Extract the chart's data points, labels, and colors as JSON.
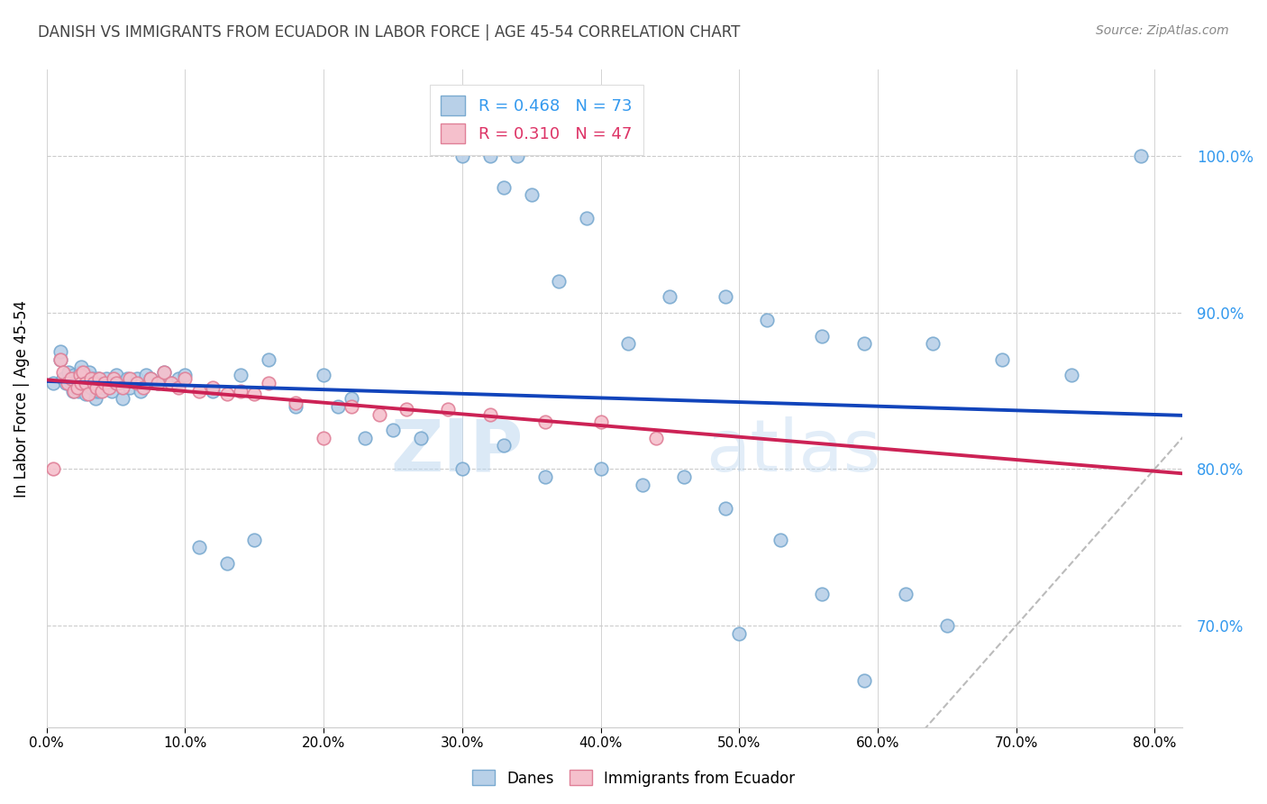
{
  "title": "DANISH VS IMMIGRANTS FROM ECUADOR IN LABOR FORCE | AGE 45-54 CORRELATION CHART",
  "source": "Source: ZipAtlas.com",
  "xlabel_vals": [
    0.0,
    0.1,
    0.2,
    0.3,
    0.4,
    0.5,
    0.6,
    0.7,
    0.8
  ],
  "ylabel_vals": [
    0.7,
    0.8,
    0.9,
    1.0
  ],
  "xlim": [
    0.0,
    0.82
  ],
  "ylim": [
    0.635,
    1.055
  ],
  "blue_r": 0.468,
  "blue_n": 73,
  "pink_r": 0.31,
  "pink_n": 47,
  "blue_color": "#b8d0e8",
  "blue_edge": "#7aaad0",
  "pink_color": "#f5c0cc",
  "pink_edge": "#e08098",
  "blue_line_color": "#1144bb",
  "pink_line_color": "#cc2255",
  "gray_line_color": "#bbbbbb",
  "legend_label_blue": "Danes",
  "legend_label_pink": "Immigrants from Ecuador",
  "ylabel": "In Labor Force | Age 45-54",
  "watermark_zip": "ZIP",
  "watermark_atlas": "atlas",
  "blue_x": [
    0.005,
    0.01,
    0.01,
    0.012,
    0.014,
    0.016,
    0.018,
    0.019,
    0.02,
    0.02,
    0.022,
    0.023,
    0.024,
    0.025,
    0.025,
    0.026,
    0.027,
    0.028,
    0.029,
    0.03,
    0.031,
    0.032,
    0.033,
    0.034,
    0.035,
    0.036,
    0.037,
    0.038,
    0.04,
    0.041,
    0.043,
    0.045,
    0.047,
    0.05,
    0.052,
    0.055,
    0.058,
    0.06,
    0.065,
    0.068,
    0.072,
    0.075,
    0.08,
    0.085,
    0.09,
    0.095,
    0.1,
    0.11,
    0.12,
    0.13,
    0.14,
    0.15,
    0.16,
    0.18,
    0.2,
    0.21,
    0.22,
    0.23,
    0.25,
    0.27,
    0.3,
    0.33,
    0.36,
    0.4,
    0.43,
    0.46,
    0.49,
    0.5,
    0.53,
    0.56,
    0.59,
    0.62,
    0.65
  ],
  "blue_y": [
    0.855,
    0.87,
    0.875,
    0.858,
    0.855,
    0.862,
    0.855,
    0.85,
    0.852,
    0.86,
    0.858,
    0.85,
    0.862,
    0.855,
    0.865,
    0.855,
    0.858,
    0.848,
    0.86,
    0.855,
    0.862,
    0.852,
    0.855,
    0.858,
    0.845,
    0.85,
    0.858,
    0.85,
    0.855,
    0.852,
    0.858,
    0.855,
    0.85,
    0.86,
    0.855,
    0.845,
    0.858,
    0.852,
    0.858,
    0.85,
    0.86,
    0.858,
    0.855,
    0.862,
    0.855,
    0.858,
    0.86,
    0.75,
    0.85,
    0.74,
    0.86,
    0.755,
    0.87,
    0.84,
    0.86,
    0.84,
    0.845,
    0.82,
    0.825,
    0.82,
    0.8,
    0.815,
    0.795,
    0.8,
    0.79,
    0.795,
    0.775,
    0.695,
    0.755,
    0.72,
    0.665,
    0.72,
    0.7
  ],
  "pink_x": [
    0.005,
    0.01,
    0.012,
    0.015,
    0.018,
    0.02,
    0.022,
    0.024,
    0.025,
    0.026,
    0.028,
    0.03,
    0.032,
    0.034,
    0.036,
    0.038,
    0.04,
    0.042,
    0.045,
    0.048,
    0.05,
    0.055,
    0.06,
    0.065,
    0.07,
    0.075,
    0.08,
    0.085,
    0.09,
    0.095,
    0.1,
    0.11,
    0.12,
    0.13,
    0.14,
    0.15,
    0.16,
    0.18,
    0.2,
    0.22,
    0.24,
    0.26,
    0.29,
    0.32,
    0.36,
    0.4,
    0.44
  ],
  "pink_y": [
    0.8,
    0.87,
    0.862,
    0.855,
    0.858,
    0.85,
    0.852,
    0.86,
    0.855,
    0.862,
    0.855,
    0.848,
    0.858,
    0.855,
    0.852,
    0.858,
    0.85,
    0.855,
    0.852,
    0.858,
    0.855,
    0.852,
    0.858,
    0.855,
    0.852,
    0.858,
    0.855,
    0.862,
    0.855,
    0.852,
    0.858,
    0.85,
    0.852,
    0.848,
    0.85,
    0.848,
    0.855,
    0.842,
    0.82,
    0.84,
    0.835,
    0.838,
    0.838,
    0.835,
    0.83,
    0.83,
    0.82
  ],
  "top_blue_x": [
    0.3,
    0.32,
    0.33,
    0.34,
    0.35,
    0.37,
    0.39,
    0.42,
    0.45,
    0.49,
    0.52,
    0.56,
    0.59,
    0.64,
    0.69,
    0.74,
    0.79
  ],
  "top_blue_y": [
    1.0,
    1.0,
    0.98,
    1.0,
    0.975,
    0.92,
    0.96,
    0.88,
    0.91,
    0.91,
    0.895,
    0.885,
    0.88,
    0.88,
    0.87,
    0.86,
    1.0
  ]
}
